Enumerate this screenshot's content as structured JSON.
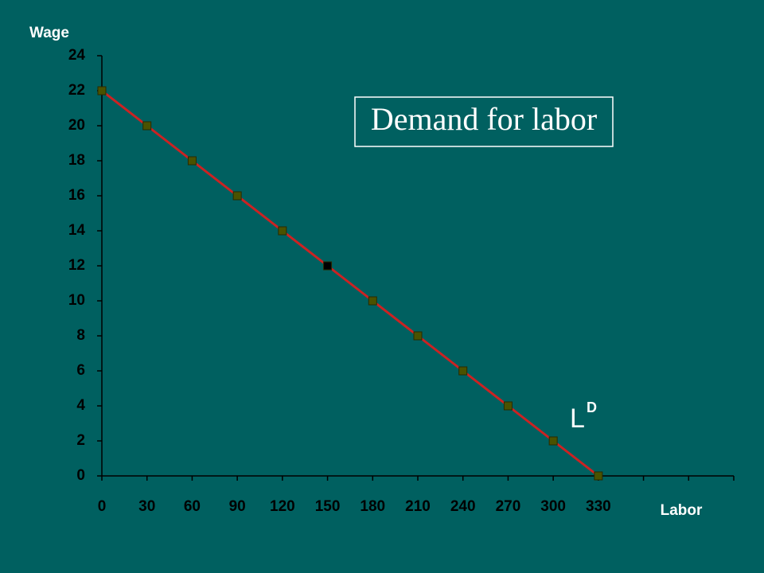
{
  "chart_data": {
    "type": "line",
    "background": "#006060",
    "x_label": "Labor",
    "y_label": "Wage",
    "x": [
      0,
      30,
      60,
      90,
      120,
      150,
      180,
      210,
      240,
      270,
      300,
      330
    ],
    "series": [
      {
        "color": "#cc2222",
        "values": [
          22,
          20,
          18,
          16,
          14,
          12,
          10,
          8,
          6,
          4,
          2,
          0
        ],
        "marker_colors": [
          "#4a5200",
          "#4a5200",
          "#4a5200",
          "#4a5200",
          "#4a5200",
          "#000000",
          "#4a5200",
          "#4a5200",
          "#4a5200",
          "#4a5200",
          "#4a5200",
          "#4a5200"
        ]
      }
    ],
    "xlim": [
      0,
      420
    ],
    "xticks": [
      0,
      30,
      60,
      90,
      120,
      150,
      180,
      210,
      240,
      270,
      300,
      330,
      {
        "value": 360,
        "label": null
      },
      {
        "value": 390,
        "label": null
      },
      {
        "value": 420,
        "label": null
      }
    ],
    "ylim": [
      0,
      24
    ],
    "yticks": [
      0,
      2,
      4,
      6,
      8,
      10,
      12,
      14,
      16,
      18,
      20,
      22,
      24
    ],
    "grid": false,
    "annotations": [
      "Demand for labor"
    ],
    "curve_label": {
      "text": "L",
      "superscript": "D"
    }
  }
}
